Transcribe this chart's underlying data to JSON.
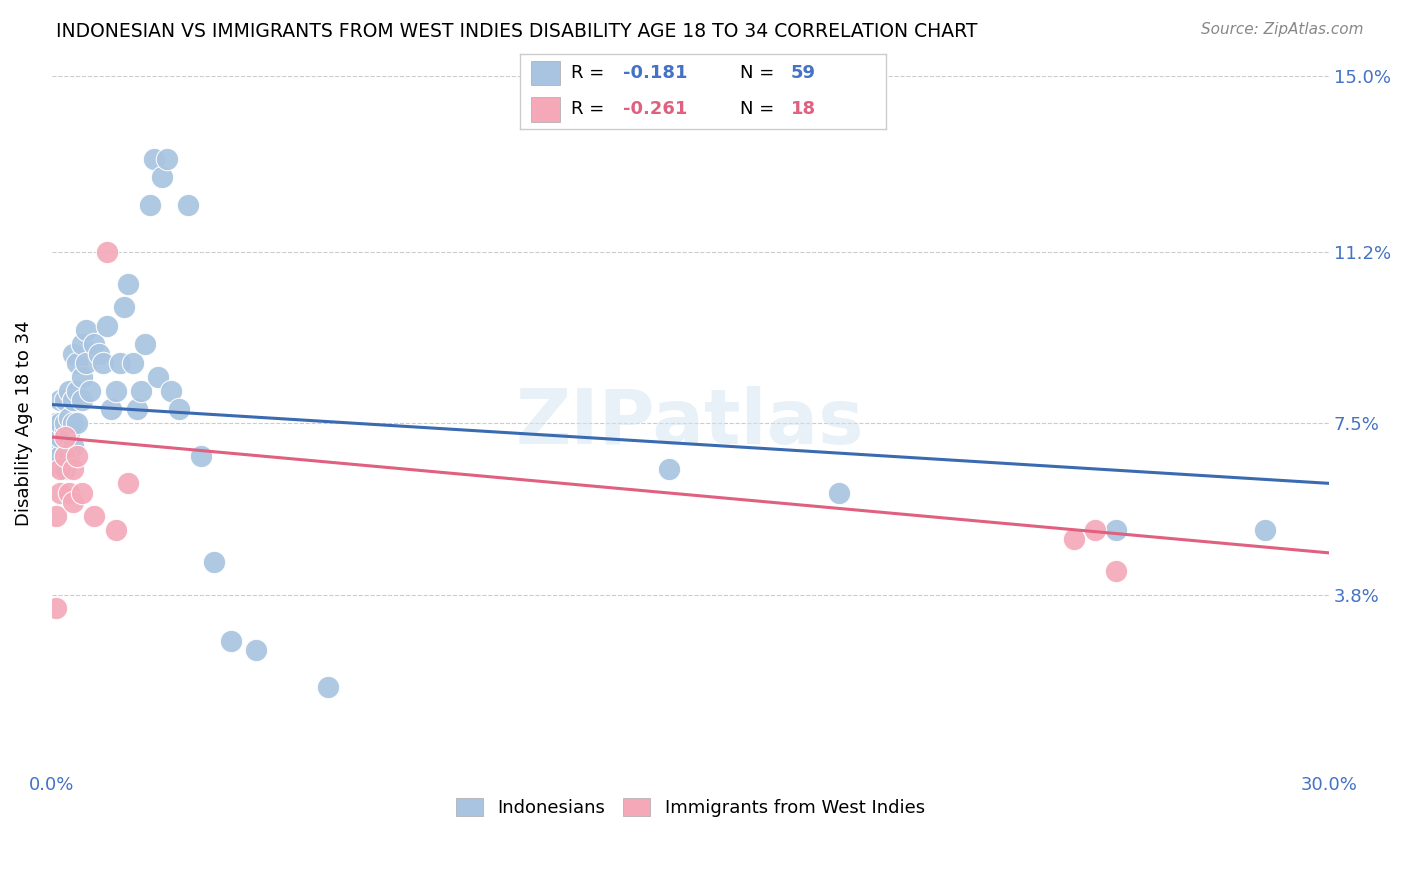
{
  "title": "INDONESIAN VS IMMIGRANTS FROM WEST INDIES DISABILITY AGE 18 TO 34 CORRELATION CHART",
  "source": "Source: ZipAtlas.com",
  "ylabel": "Disability Age 18 to 34",
  "xlim": [
    0.0,
    0.3
  ],
  "ylim": [
    0.0,
    0.15
  ],
  "ytick_positions": [
    0.038,
    0.075,
    0.112,
    0.15
  ],
  "ytick_labels": [
    "3.8%",
    "7.5%",
    "11.2%",
    "15.0%"
  ],
  "watermark": "ZIPatlas",
  "blue_color": "#a8c4e0",
  "pink_color": "#f4a8b8",
  "blue_line_color": "#3a6ab0",
  "pink_line_color": "#e06080",
  "indonesian_x": [
    0.001,
    0.001,
    0.001,
    0.002,
    0.002,
    0.002,
    0.002,
    0.003,
    0.003,
    0.003,
    0.003,
    0.003,
    0.004,
    0.004,
    0.004,
    0.004,
    0.005,
    0.005,
    0.005,
    0.005,
    0.006,
    0.006,
    0.006,
    0.007,
    0.007,
    0.007,
    0.008,
    0.008,
    0.009,
    0.01,
    0.011,
    0.012,
    0.013,
    0.014,
    0.015,
    0.016,
    0.017,
    0.018,
    0.019,
    0.02,
    0.021,
    0.022,
    0.023,
    0.024,
    0.025,
    0.026,
    0.027,
    0.028,
    0.03,
    0.032,
    0.035,
    0.038,
    0.042,
    0.048,
    0.065,
    0.145,
    0.185,
    0.25,
    0.285
  ],
  "indonesian_y": [
    0.075,
    0.07,
    0.066,
    0.068,
    0.072,
    0.075,
    0.08,
    0.065,
    0.068,
    0.073,
    0.075,
    0.08,
    0.068,
    0.072,
    0.076,
    0.082,
    0.07,
    0.075,
    0.08,
    0.09,
    0.075,
    0.082,
    0.088,
    0.08,
    0.085,
    0.092,
    0.088,
    0.095,
    0.082,
    0.092,
    0.09,
    0.088,
    0.096,
    0.078,
    0.082,
    0.088,
    0.1,
    0.105,
    0.088,
    0.078,
    0.082,
    0.092,
    0.122,
    0.132,
    0.085,
    0.128,
    0.132,
    0.082,
    0.078,
    0.122,
    0.068,
    0.045,
    0.028,
    0.026,
    0.018,
    0.065,
    0.06,
    0.052,
    0.052
  ],
  "westindies_x": [
    0.001,
    0.001,
    0.002,
    0.002,
    0.003,
    0.003,
    0.004,
    0.005,
    0.005,
    0.006,
    0.007,
    0.01,
    0.013,
    0.015,
    0.018,
    0.24,
    0.245,
    0.25
  ],
  "westindies_y": [
    0.035,
    0.055,
    0.06,
    0.065,
    0.068,
    0.072,
    0.06,
    0.058,
    0.065,
    0.068,
    0.06,
    0.055,
    0.112,
    0.052,
    0.062,
    0.05,
    0.052,
    0.043
  ]
}
